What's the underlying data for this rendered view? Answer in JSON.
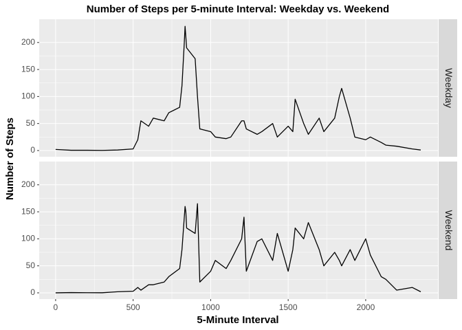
{
  "chart_data": {
    "type": "line",
    "title": "Number of Steps per 5-minute Interval: Weekday vs. Weekend",
    "x_label": "5-Minute Interval",
    "y_label": "Number of Steps",
    "x": [
      0,
      100,
      200,
      300,
      400,
      500,
      530,
      550,
      600,
      630,
      700,
      730,
      800,
      815,
      830,
      835,
      840,
      845,
      900,
      915,
      930,
      1000,
      1030,
      1100,
      1130,
      1200,
      1215,
      1230,
      1300,
      1330,
      1400,
      1430,
      1500,
      1530,
      1545,
      1600,
      1630,
      1700,
      1730,
      1800,
      1830,
      1845,
      1900,
      1930,
      2000,
      2030,
      2100,
      2130,
      2200,
      2300,
      2355
    ],
    "series": [
      {
        "name": "Weekday",
        "color": "#000000",
        "values": [
          2,
          0.5,
          0.5,
          0.3,
          1,
          3,
          20,
          55,
          45,
          60,
          55,
          70,
          80,
          120,
          200,
          230,
          210,
          190,
          170,
          100,
          40,
          35,
          25,
          22,
          25,
          55,
          55,
          40,
          30,
          35,
          50,
          25,
          45,
          35,
          95,
          50,
          30,
          60,
          35,
          60,
          100,
          115,
          60,
          25,
          20,
          25,
          15,
          10,
          8,
          3,
          1
        ]
      },
      {
        "name": "Weekend",
        "color": "#000000",
        "values": [
          0,
          0.5,
          0.3,
          0.2,
          2,
          3,
          10,
          5,
          15,
          15,
          20,
          30,
          45,
          80,
          140,
          160,
          150,
          120,
          110,
          165,
          20,
          40,
          60,
          45,
          60,
          100,
          140,
          40,
          95,
          100,
          60,
          110,
          40,
          80,
          120,
          100,
          130,
          80,
          50,
          75,
          60,
          50,
          80,
          60,
          100,
          70,
          30,
          25,
          5,
          10,
          2
        ]
      }
    ],
    "xlim": [
      -106,
      2466
    ],
    "ylim": [
      -11.5,
      243
    ],
    "xticks": [
      0,
      500,
      1000,
      1500,
      2000
    ],
    "yticks": [
      0,
      50,
      100,
      150,
      200
    ],
    "grid": true
  }
}
